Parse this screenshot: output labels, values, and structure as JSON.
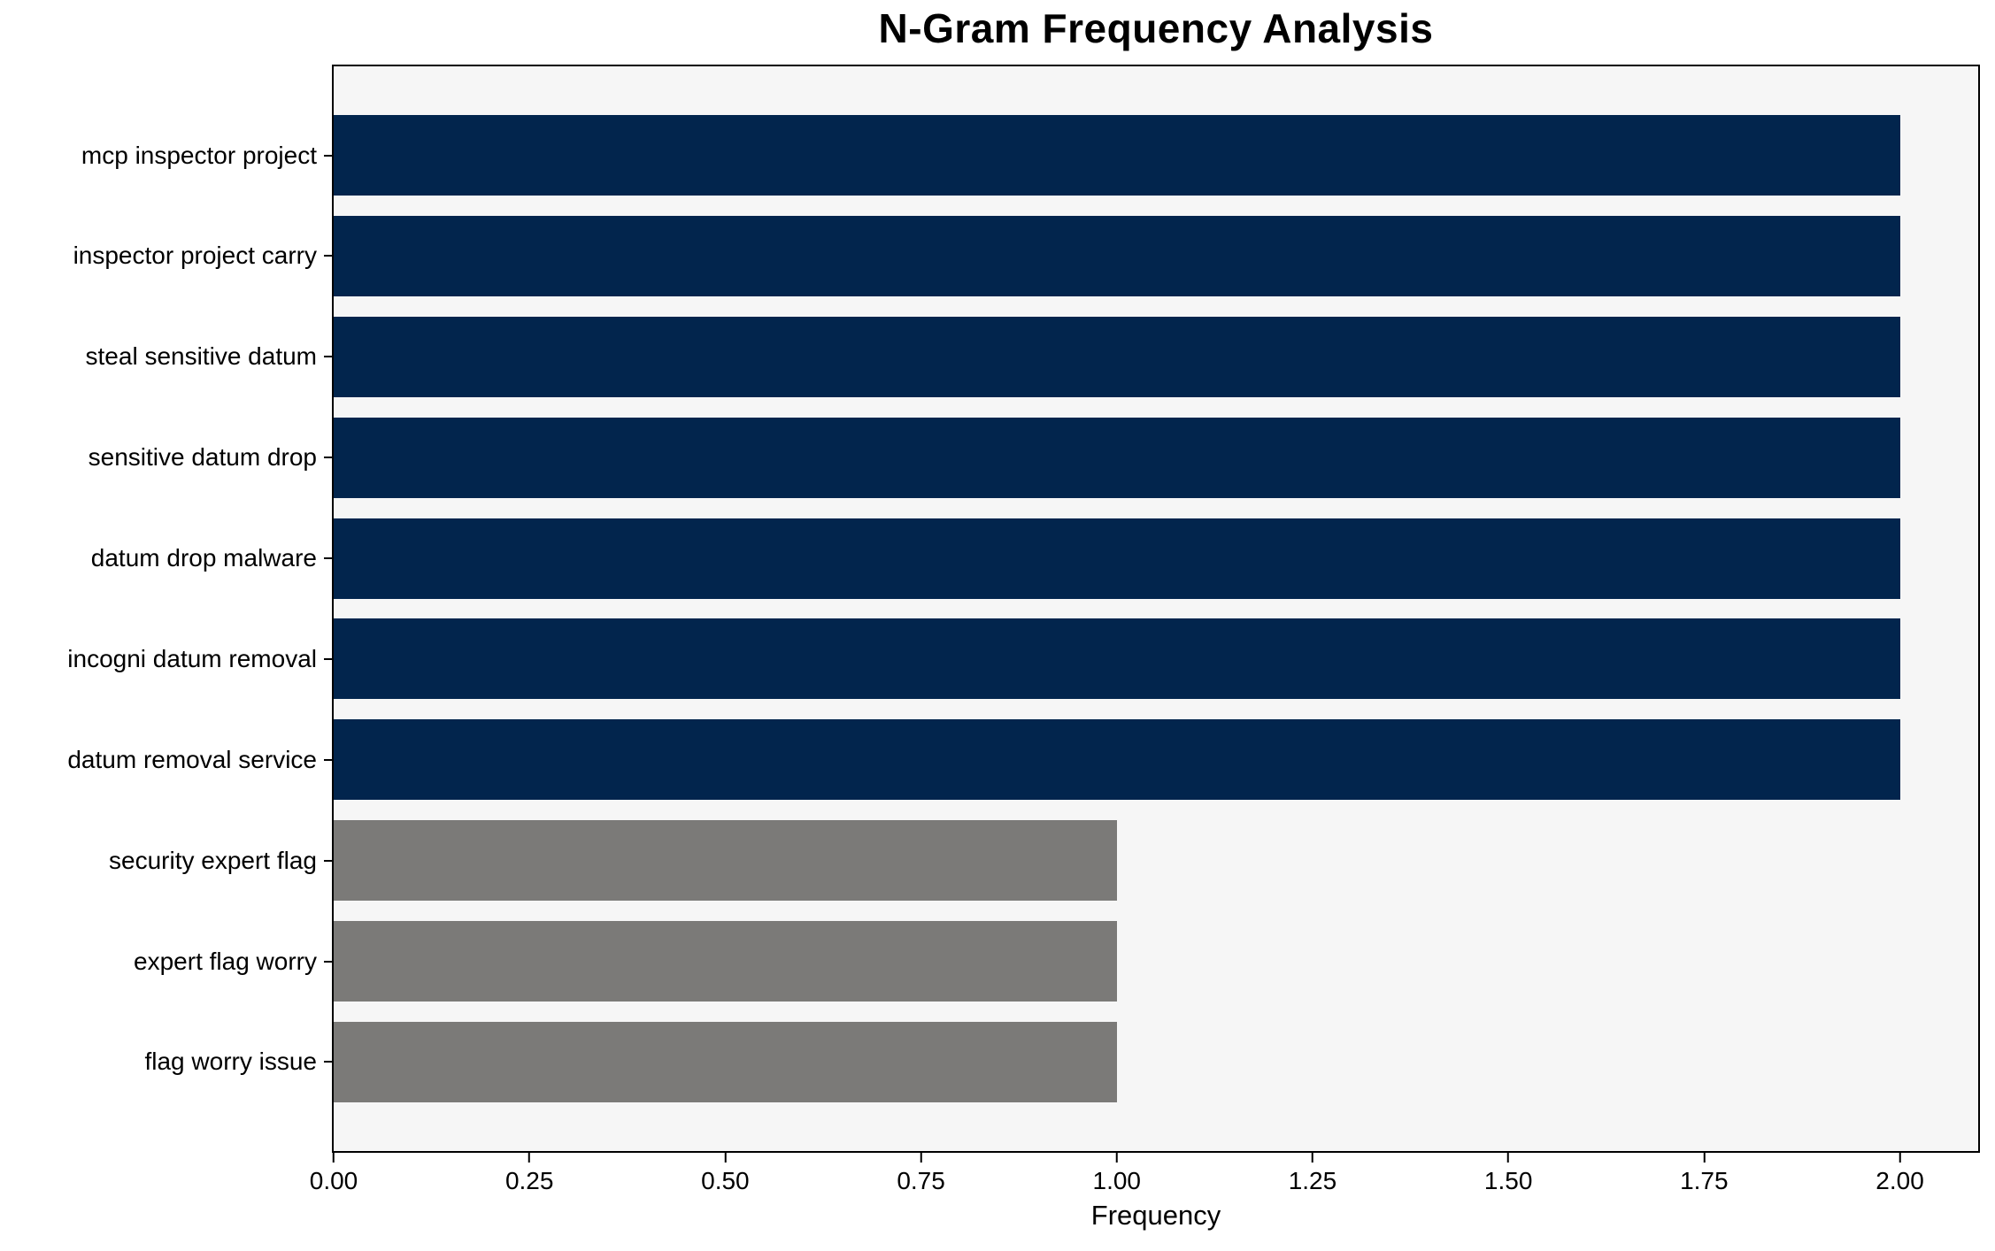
{
  "chart_data": {
    "type": "bar",
    "orientation": "horizontal",
    "title": "N-Gram Frequency Analysis",
    "xlabel": "Frequency",
    "ylabel": "",
    "categories": [
      "mcp inspector project",
      "inspector project carry",
      "steal sensitive datum",
      "sensitive datum drop",
      "datum drop malware",
      "incogni datum removal",
      "datum removal service",
      "security expert flag",
      "expert flag worry",
      "flag worry issue"
    ],
    "values": [
      2,
      2,
      2,
      2,
      2,
      2,
      2,
      1,
      1,
      1
    ],
    "bar_colors": [
      "#02254d",
      "#02254d",
      "#02254d",
      "#02254d",
      "#02254d",
      "#02254d",
      "#02254d",
      "#7b7a78",
      "#7b7a78",
      "#7b7a78"
    ],
    "xlim": [
      0,
      2.1
    ],
    "xticks": [
      0,
      0.25,
      0.5,
      0.75,
      1.0,
      1.25,
      1.5,
      1.75,
      2.0
    ],
    "xtick_labels": [
      "0.00",
      "0.25",
      "0.50",
      "0.75",
      "1.00",
      "1.25",
      "1.50",
      "1.75",
      "2.00"
    ],
    "grid": false,
    "legend": null,
    "plot_background": "#f6f6f6",
    "figure_background": "#ffffff",
    "spine_color": "#000000"
  }
}
